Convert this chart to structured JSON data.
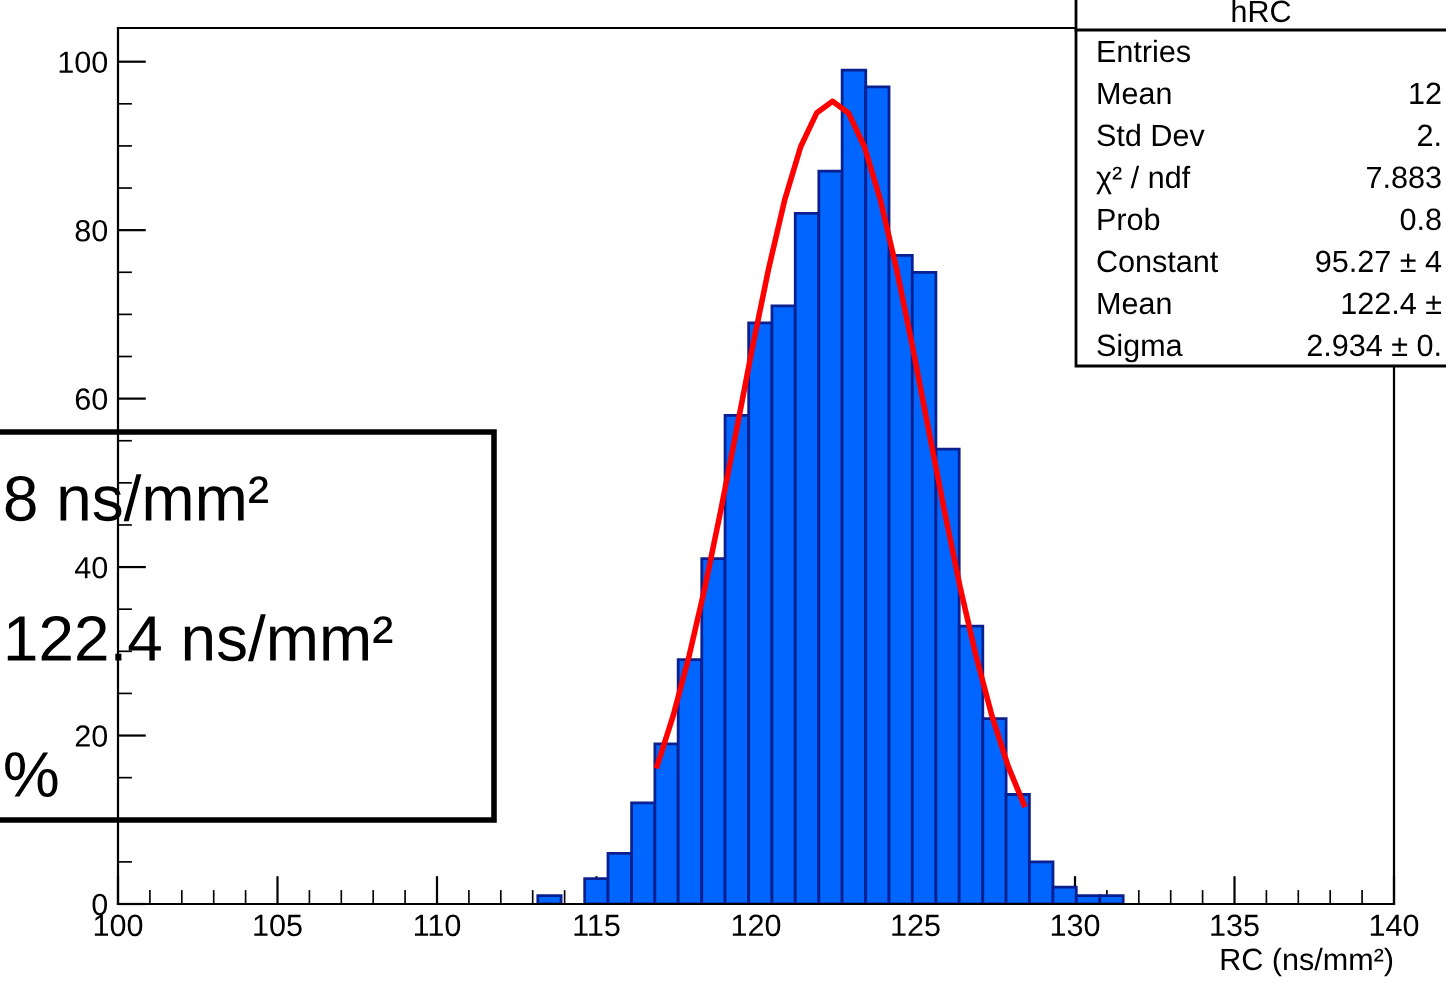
{
  "chart_data": {
    "type": "histogram",
    "xlabel": "RC (ns/mm²)",
    "bins": [
      113.16,
      113.89,
      114.63,
      115.36,
      116.1,
      116.83,
      117.56,
      118.3,
      119.03,
      119.77,
      120.5,
      121.23,
      121.97,
      122.7,
      123.44,
      124.17,
      124.9,
      125.64,
      126.37,
      127.11,
      127.84,
      128.57,
      129.31,
      130.04,
      130.78,
      131.51
    ],
    "series": [
      {
        "color": "#0066ff",
        "values": [
          1,
          0,
          3,
          6,
          12,
          19,
          29,
          41,
          58,
          69,
          71,
          82,
          87,
          99,
          97,
          77,
          75,
          54,
          33,
          22,
          13,
          5,
          2,
          1,
          1
        ]
      },
      {
        "type": "line",
        "color": "#ff0000",
        "x": [
          116.9,
          117.4,
          117.9,
          118.4,
          118.9,
          119.4,
          119.9,
          120.4,
          120.9,
          121.4,
          121.9,
          122.4,
          122.9,
          123.4,
          123.9,
          124.4,
          124.9,
          125.4,
          125.9,
          126.4,
          126.9,
          127.4,
          127.9,
          128.4
        ],
        "values": [
          16.4,
          22.3,
          29.4,
          37.6,
          46.8,
          56.5,
          66.3,
          75.5,
          83.6,
          89.9,
          93.9,
          95.3,
          93.9,
          89.9,
          83.6,
          75.5,
          66.3,
          56.5,
          46.8,
          37.6,
          29.4,
          22.3,
          16.4,
          11.8
        ]
      }
    ],
    "xlim": [
      100,
      140
    ],
    "xticks": [
      100,
      105,
      110,
      115,
      120,
      125,
      130,
      135,
      140
    ],
    "ylim": [
      0,
      104
    ],
    "yticks": [
      0,
      20,
      40,
      60,
      80,
      100
    ],
    "grid": false,
    "annotations": [
      "8 ns/mm²",
      "122.4 ns/mm²",
      "%",
      "hRC",
      "Entries",
      "Mean",
      "Std Dev",
      "χ² / ndf",
      "Prob",
      "Constant",
      "Mean",
      "Sigma",
      "12",
      "2.",
      "7.883",
      "0.8",
      "95.27 ± 4",
      "122.4 ±",
      "2.934 ± 0."
    ]
  }
}
